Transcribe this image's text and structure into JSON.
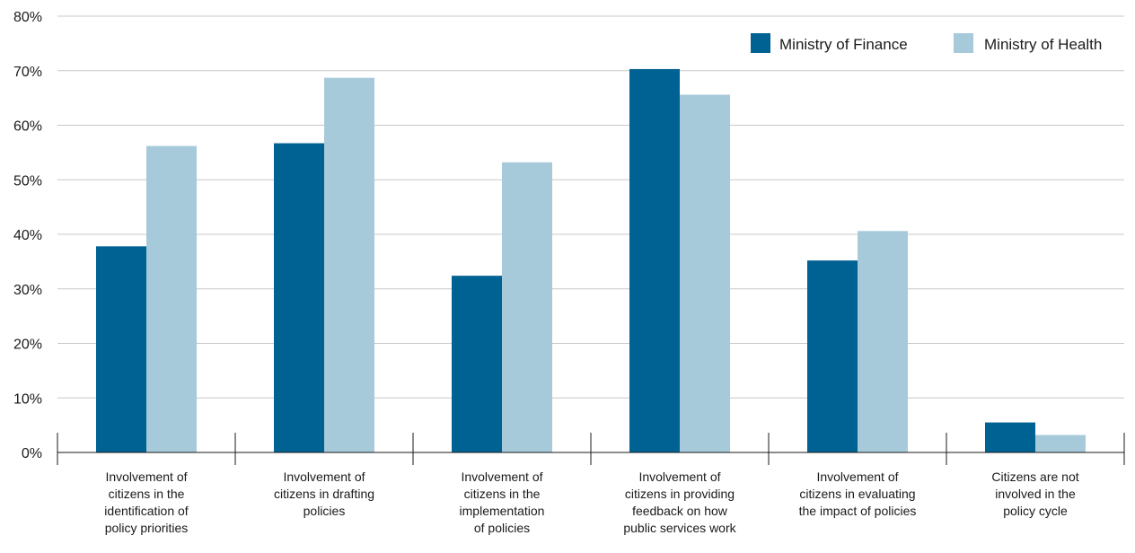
{
  "chart_data": {
    "type": "bar",
    "categories": [
      "Involvement of\ncitizens in the\nidentification of\npolicy priorities",
      "Involvement of\ncitizens in drafting\npolicies",
      "Involvement of\ncitizens in the\nimplementation\nof policies",
      "Involvement of\ncitizens in providing\nfeedback on how\npublic services work",
      "Involvement of\ncitizens in evaluating\nthe impact of policies",
      "Citizens are not\ninvolved in the\npolicy cycle"
    ],
    "series": [
      {
        "name": "Ministry of Finance",
        "color": "#006193",
        "values": [
          37.8,
          56.7,
          32.4,
          70.3,
          35.2,
          5.5
        ]
      },
      {
        "name": "Ministry of Health",
        "color": "#a7cadb",
        "values": [
          56.2,
          68.7,
          53.2,
          65.6,
          40.6,
          3.2
        ]
      }
    ],
    "yticks": [
      "0%",
      "10%",
      "20%",
      "30%",
      "40%",
      "50%",
      "60%",
      "70%",
      "80%"
    ],
    "ylim": [
      0,
      80
    ],
    "grid": true,
    "legend_position": "top-right",
    "title": "",
    "xlabel": "",
    "ylabel": ""
  }
}
